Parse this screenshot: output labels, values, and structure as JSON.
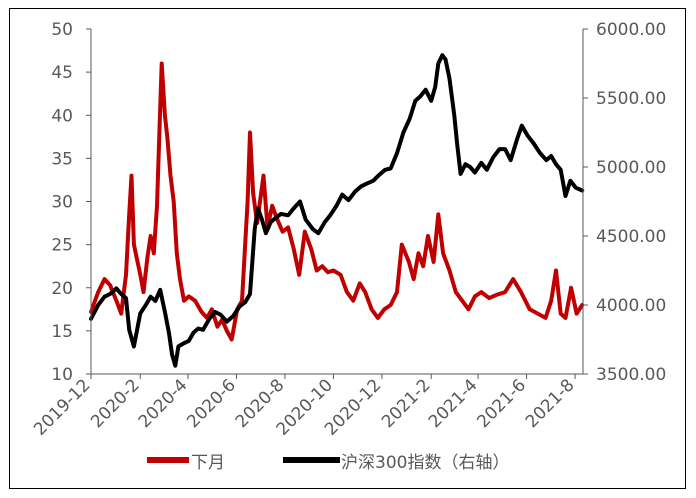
{
  "chart_data": {
    "type": "line",
    "title": "",
    "xlabel": "",
    "ylabel": "",
    "y_left": {
      "ylim": [
        10,
        50
      ],
      "ticks": [
        "10",
        "15",
        "20",
        "25",
        "30",
        "35",
        "40",
        "45",
        "50"
      ]
    },
    "y_right": {
      "ylim": [
        3500,
        6000
      ],
      "ticks": [
        "3500.00",
        "4000.00",
        "4500.00",
        "5000.00",
        "5500.00",
        "6000.00"
      ]
    },
    "x_ticks": [
      "2019-12",
      "2020-2",
      "2020-4",
      "2020-6",
      "2020-8",
      "2020-10",
      "2020-12",
      "2021-2",
      "2021-4",
      "2021-6",
      "2021-8"
    ],
    "legend_position": "bottom",
    "grid": false,
    "colors": {
      "series1": "#C00000",
      "series2": "#000000",
      "axis": "#595959"
    },
    "series": [
      {
        "name": "下月",
        "axis": "left",
        "points": [
          [
            "2019-12-01",
            17.2
          ],
          [
            "2019-12-10",
            19.5
          ],
          [
            "2019-12-18",
            21.0
          ],
          [
            "2019-12-25",
            20.3
          ],
          [
            "2020-01-02",
            18.5
          ],
          [
            "2020-01-08",
            17.0
          ],
          [
            "2020-01-14",
            21.5
          ],
          [
            "2020-01-18",
            28.5
          ],
          [
            "2020-01-21",
            33.0
          ],
          [
            "2020-01-24",
            25.0
          ],
          [
            "2020-02-01",
            21.5
          ],
          [
            "2020-02-05",
            19.5
          ],
          [
            "2020-02-10",
            23.5
          ],
          [
            "2020-02-14",
            26.0
          ],
          [
            "2020-02-18",
            24.0
          ],
          [
            "2020-02-22",
            29.5
          ],
          [
            "2020-02-25",
            38.0
          ],
          [
            "2020-02-28",
            46.0
          ],
          [
            "2020-03-03",
            40.0
          ],
          [
            "2020-03-06",
            37.5
          ],
          [
            "2020-03-10",
            33.0
          ],
          [
            "2020-03-14",
            30.0
          ],
          [
            "2020-03-18",
            24.0
          ],
          [
            "2020-03-22",
            21.0
          ],
          [
            "2020-03-27",
            18.5
          ],
          [
            "2020-04-02",
            19.0
          ],
          [
            "2020-04-10",
            18.5
          ],
          [
            "2020-04-18",
            17.2
          ],
          [
            "2020-04-25",
            16.5
          ],
          [
            "2020-05-01",
            17.5
          ],
          [
            "2020-05-08",
            15.5
          ],
          [
            "2020-05-14",
            16.3
          ],
          [
            "2020-05-20",
            15.0
          ],
          [
            "2020-05-26",
            14.0
          ],
          [
            "2020-06-02",
            17.5
          ],
          [
            "2020-06-08",
            18.5
          ],
          [
            "2020-06-15",
            30.0
          ],
          [
            "2020-06-18",
            38.0
          ],
          [
            "2020-06-22",
            31.0
          ],
          [
            "2020-06-27",
            27.5
          ],
          [
            "2020-07-05",
            33.0
          ],
          [
            "2020-07-10",
            27.0
          ],
          [
            "2020-07-16",
            29.5
          ],
          [
            "2020-07-22",
            28.0
          ],
          [
            "2020-07-29",
            26.5
          ],
          [
            "2020-08-05",
            27.0
          ],
          [
            "2020-08-12",
            24.5
          ],
          [
            "2020-08-19",
            21.5
          ],
          [
            "2020-08-26",
            26.5
          ],
          [
            "2020-09-03",
            24.5
          ],
          [
            "2020-09-10",
            22.0
          ],
          [
            "2020-09-17",
            22.5
          ],
          [
            "2020-09-24",
            21.8
          ],
          [
            "2020-10-01",
            22.0
          ],
          [
            "2020-10-10",
            21.5
          ],
          [
            "2020-10-18",
            19.5
          ],
          [
            "2020-10-26",
            18.5
          ],
          [
            "2020-11-03",
            20.5
          ],
          [
            "2020-11-10",
            19.5
          ],
          [
            "2020-11-18",
            17.5
          ],
          [
            "2020-11-26",
            16.5
          ],
          [
            "2020-12-04",
            17.5
          ],
          [
            "2020-12-12",
            18.0
          ],
          [
            "2020-12-20",
            19.5
          ],
          [
            "2020-12-26",
            25.0
          ],
          [
            "2021-01-04",
            23.0
          ],
          [
            "2021-01-10",
            21.0
          ],
          [
            "2021-01-16",
            24.0
          ],
          [
            "2021-01-22",
            22.5
          ],
          [
            "2021-01-28",
            26.0
          ],
          [
            "2021-02-04",
            23.0
          ],
          [
            "2021-02-10",
            28.5
          ],
          [
            "2021-02-16",
            24.0
          ],
          [
            "2021-02-24",
            22.0
          ],
          [
            "2021-03-04",
            19.5
          ],
          [
            "2021-03-12",
            18.5
          ],
          [
            "2021-03-20",
            17.5
          ],
          [
            "2021-03-28",
            19.0
          ],
          [
            "2021-04-05",
            19.5
          ],
          [
            "2021-04-15",
            18.8
          ],
          [
            "2021-04-25",
            19.2
          ],
          [
            "2021-05-05",
            19.5
          ],
          [
            "2021-05-15",
            21.0
          ],
          [
            "2021-05-25",
            19.5
          ],
          [
            "2021-06-05",
            17.5
          ],
          [
            "2021-06-15",
            17.0
          ],
          [
            "2021-06-25",
            16.5
          ],
          [
            "2021-07-02",
            18.5
          ],
          [
            "2021-07-08",
            22.0
          ],
          [
            "2021-07-14",
            17.0
          ],
          [
            "2021-07-20",
            16.5
          ],
          [
            "2021-07-27",
            20.0
          ],
          [
            "2021-08-03",
            17.0
          ],
          [
            "2021-08-10",
            18.0
          ]
        ]
      },
      {
        "name": "沪深300指数（右轴）",
        "axis": "right",
        "points": [
          [
            "2019-12-01",
            3900
          ],
          [
            "2019-12-10",
            4000
          ],
          [
            "2019-12-18",
            4060
          ],
          [
            "2019-12-25",
            4080
          ],
          [
            "2020-01-02",
            4120
          ],
          [
            "2020-01-08",
            4080
          ],
          [
            "2020-01-14",
            4050
          ],
          [
            "2020-01-18",
            3820
          ],
          [
            "2020-01-24",
            3700
          ],
          [
            "2020-02-01",
            3940
          ],
          [
            "2020-02-08",
            4000
          ],
          [
            "2020-02-14",
            4060
          ],
          [
            "2020-02-20",
            4030
          ],
          [
            "2020-02-26",
            4110
          ],
          [
            "2020-03-03",
            3950
          ],
          [
            "2020-03-08",
            3800
          ],
          [
            "2020-03-12",
            3640
          ],
          [
            "2020-03-16",
            3560
          ],
          [
            "2020-03-20",
            3700
          ],
          [
            "2020-03-26",
            3720
          ],
          [
            "2020-04-02",
            3740
          ],
          [
            "2020-04-08",
            3800
          ],
          [
            "2020-04-14",
            3830
          ],
          [
            "2020-04-20",
            3820
          ],
          [
            "2020-04-28",
            3900
          ],
          [
            "2020-05-05",
            3950
          ],
          [
            "2020-05-12",
            3930
          ],
          [
            "2020-05-20",
            3880
          ],
          [
            "2020-05-28",
            3920
          ],
          [
            "2020-06-05",
            3990
          ],
          [
            "2020-06-12",
            4020
          ],
          [
            "2020-06-18",
            4080
          ],
          [
            "2020-06-24",
            4550
          ],
          [
            "2020-06-28",
            4700
          ],
          [
            "2020-07-03",
            4620
          ],
          [
            "2020-07-08",
            4520
          ],
          [
            "2020-07-14",
            4600
          ],
          [
            "2020-07-20",
            4630
          ],
          [
            "2020-07-27",
            4660
          ],
          [
            "2020-08-05",
            4650
          ],
          [
            "2020-08-12",
            4700
          ],
          [
            "2020-08-20",
            4750
          ],
          [
            "2020-08-27",
            4620
          ],
          [
            "2020-09-05",
            4550
          ],
          [
            "2020-09-12",
            4520
          ],
          [
            "2020-09-20",
            4600
          ],
          [
            "2020-09-27",
            4650
          ],
          [
            "2020-10-05",
            4720
          ],
          [
            "2020-10-12",
            4800
          ],
          [
            "2020-10-20",
            4760
          ],
          [
            "2020-10-28",
            4820
          ],
          [
            "2020-11-05",
            4860
          ],
          [
            "2020-11-12",
            4880
          ],
          [
            "2020-11-20",
            4900
          ],
          [
            "2020-11-27",
            4940
          ],
          [
            "2020-12-05",
            4980
          ],
          [
            "2020-12-12",
            4990
          ],
          [
            "2020-12-20",
            5100
          ],
          [
            "2020-12-28",
            5250
          ],
          [
            "2021-01-05",
            5350
          ],
          [
            "2021-01-12",
            5480
          ],
          [
            "2021-01-18",
            5510
          ],
          [
            "2021-01-25",
            5560
          ],
          [
            "2021-02-01",
            5480
          ],
          [
            "2021-02-06",
            5580
          ],
          [
            "2021-02-10",
            5750
          ],
          [
            "2021-02-15",
            5810
          ],
          [
            "2021-02-19",
            5780
          ],
          [
            "2021-02-24",
            5640
          ],
          [
            "2021-03-02",
            5380
          ],
          [
            "2021-03-06",
            5150
          ],
          [
            "2021-03-10",
            4950
          ],
          [
            "2021-03-16",
            5020
          ],
          [
            "2021-03-22",
            5000
          ],
          [
            "2021-03-28",
            4960
          ],
          [
            "2021-04-05",
            5030
          ],
          [
            "2021-04-12",
            4980
          ],
          [
            "2021-04-20",
            5070
          ],
          [
            "2021-04-28",
            5130
          ],
          [
            "2021-05-05",
            5130
          ],
          [
            "2021-05-12",
            5050
          ],
          [
            "2021-05-20",
            5200
          ],
          [
            "2021-05-26",
            5300
          ],
          [
            "2021-06-02",
            5230
          ],
          [
            "2021-06-10",
            5170
          ],
          [
            "2021-06-18",
            5100
          ],
          [
            "2021-06-26",
            5050
          ],
          [
            "2021-07-02",
            5080
          ],
          [
            "2021-07-08",
            5020
          ],
          [
            "2021-07-14",
            4980
          ],
          [
            "2021-07-20",
            4790
          ],
          [
            "2021-07-26",
            4900
          ],
          [
            "2021-08-02",
            4850
          ],
          [
            "2021-08-10",
            4830
          ]
        ]
      }
    ]
  }
}
